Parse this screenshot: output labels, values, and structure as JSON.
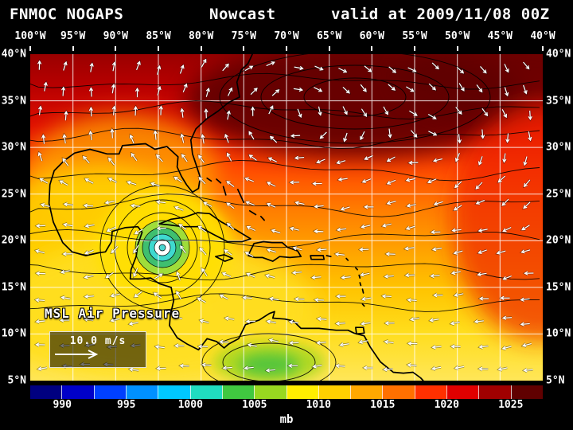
{
  "header": {
    "model": "FNMOC NOGAPS",
    "product": "Nowcast",
    "valid": "valid at 2009/11/08 00Z"
  },
  "axes": {
    "lon_ticks": [
      "100°W",
      "95°W",
      "90°W",
      "85°W",
      "80°W",
      "75°W",
      "70°W",
      "65°W",
      "60°W",
      "55°W",
      "50°W",
      "45°W",
      "40°W"
    ],
    "lat_ticks": [
      "40°N",
      "35°N",
      "30°N",
      "25°N",
      "20°N",
      "15°N",
      "10°N",
      "5°N"
    ]
  },
  "map": {
    "field_label": "MSL Air Pressure",
    "wind_reference": "10.0 m/s"
  },
  "colorbar": {
    "unit": "mb",
    "tick_values": [
      "990",
      "995",
      "1000",
      "1005",
      "1010",
      "1015",
      "1020",
      "1025"
    ],
    "segment_colors": [
      "#000080",
      "#0000c8",
      "#0040ff",
      "#0090ff",
      "#00c8ff",
      "#20dcc0",
      "#40c840",
      "#98d820",
      "#ffee00",
      "#ffd000",
      "#ffa800",
      "#ff7000",
      "#ff3000",
      "#e00000",
      "#a00000",
      "#600000"
    ]
  },
  "chart_data": {
    "type": "heatmap",
    "title": "FNMOC NOGAPS Nowcast valid at 2009/11/08 00Z",
    "variable": "MSL Air Pressure",
    "units": "mb",
    "x_axis": {
      "label": "longitude",
      "ticks": [
        "100°W",
        "95°W",
        "90°W",
        "85°W",
        "80°W",
        "75°W",
        "70°W",
        "65°W",
        "60°W",
        "55°W",
        "50°W",
        "45°W",
        "40°W"
      ]
    },
    "y_axis": {
      "label": "latitude",
      "ticks": [
        "40°N",
        "35°N",
        "30°N",
        "25°N",
        "20°N",
        "15°N",
        "10°N",
        "5°N"
      ]
    },
    "grid": true,
    "legend_position": "bottom",
    "colorbar": {
      "unit": "mb",
      "tick_values": [
        990,
        995,
        1000,
        1005,
        1010,
        1015,
        1020,
        1025
      ],
      "range_mb": [
        987.5,
        1027.5
      ],
      "segment_mb": 2.5
    },
    "features": [
      {
        "name": "tropical-cyclone",
        "approx_position": "19°N 84°W",
        "approx_central_pressure_mb": 992
      },
      {
        "name": "subtropical-high",
        "approx_position": "33°N 67°W",
        "approx_central_pressure_mb": 1026
      },
      {
        "name": "thermal-low",
        "approx_position": "7°N 72°W",
        "approx_central_pressure_mb": 1004
      }
    ],
    "pressure_by_latitude_estimate_mb": {
      "40N": 1023,
      "35N": 1022,
      "30N": 1019,
      "25N": 1016,
      "20N": 1012,
      "15N": 1010,
      "10N": 1009,
      "5N": 1009
    },
    "wind": {
      "reference_vector": "10.0 m/s",
      "depiction": "white wind arrows over field"
    }
  }
}
